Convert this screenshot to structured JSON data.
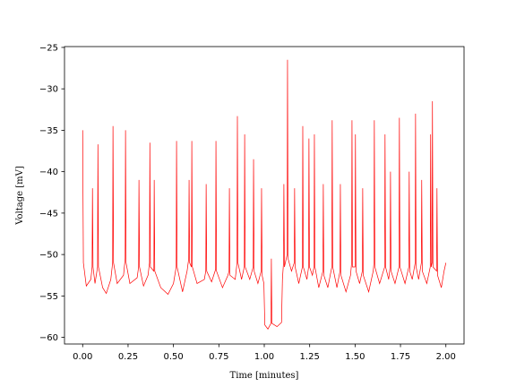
{
  "chart_data": {
    "type": "line",
    "xlabel": "Time [minutes]",
    "ylabel": "Voltage [mV]",
    "xlim": [
      -0.1,
      2.1
    ],
    "ylim": [
      -60.8,
      -24.9
    ],
    "xticks": [
      {
        "value": 0,
        "label": "0.00"
      },
      {
        "value": 0.25,
        "label": "0.25"
      },
      {
        "value": 0.5,
        "label": "0.50"
      },
      {
        "value": 0.75,
        "label": "0.75"
      },
      {
        "value": 1,
        "label": "1.00"
      },
      {
        "value": 1.25,
        "label": "1.25"
      },
      {
        "value": 1.5,
        "label": "1.50"
      },
      {
        "value": 1.75,
        "label": "1.75"
      },
      {
        "value": 2,
        "label": "2.00"
      }
    ],
    "yticks": [
      {
        "value": -25,
        "label": "−25"
      },
      {
        "value": -30,
        "label": "−30"
      },
      {
        "value": -35,
        "label": "−35"
      },
      {
        "value": -40,
        "label": "−40"
      },
      {
        "value": -45,
        "label": "−45"
      },
      {
        "value": -50,
        "label": "−50"
      },
      {
        "value": -55,
        "label": "−55"
      },
      {
        "value": -60,
        "label": "−60"
      }
    ],
    "grid": false,
    "x": [
      0.0,
      0.004,
      0.02,
      0.045,
      0.052,
      0.054,
      0.057,
      0.068,
      0.082,
      0.084,
      0.087,
      0.11,
      0.13,
      0.155,
      0.165,
      0.167,
      0.17,
      0.19,
      0.225,
      0.234,
      0.236,
      0.239,
      0.26,
      0.3,
      0.308,
      0.31,
      0.313,
      0.335,
      0.36,
      0.368,
      0.37,
      0.373,
      0.392,
      0.394,
      0.397,
      0.43,
      0.47,
      0.5,
      0.515,
      0.517,
      0.52,
      0.55,
      0.575,
      0.584,
      0.586,
      0.589,
      0.599,
      0.601,
      0.604,
      0.63,
      0.67,
      0.678,
      0.68,
      0.683,
      0.71,
      0.732,
      0.734,
      0.737,
      0.77,
      0.8,
      0.806,
      0.808,
      0.811,
      0.84,
      0.85,
      0.852,
      0.855,
      0.875,
      0.89,
      0.892,
      0.895,
      0.92,
      0.939,
      0.941,
      0.944,
      0.965,
      0.983,
      0.985,
      0.988,
      0.998,
      1.003,
      1.02,
      1.037,
      1.039,
      1.042,
      1.07,
      1.095,
      1.1,
      1.106,
      1.108,
      1.111,
      1.126,
      1.128,
      1.131,
      1.15,
      1.165,
      1.167,
      1.17,
      1.19,
      1.21,
      1.212,
      1.215,
      1.235,
      1.244,
      1.246,
      1.249,
      1.265,
      1.274,
      1.276,
      1.279,
      1.3,
      1.323,
      1.325,
      1.328,
      1.35,
      1.372,
      1.374,
      1.377,
      1.4,
      1.417,
      1.419,
      1.422,
      1.45,
      1.475,
      1.481,
      1.483,
      1.486,
      1.5,
      1.502,
      1.505,
      1.525,
      1.54,
      1.542,
      1.545,
      1.575,
      1.6,
      1.604,
      1.606,
      1.609,
      1.635,
      1.663,
      1.665,
      1.668,
      1.685,
      1.693,
      1.695,
      1.698,
      1.72,
      1.742,
      1.744,
      1.747,
      1.775,
      1.796,
      1.798,
      1.801,
      1.815,
      1.831,
      1.833,
      1.836,
      1.85,
      1.865,
      1.867,
      1.87,
      1.895,
      1.914,
      1.916,
      1.919,
      1.924,
      1.926,
      1.929,
      1.949,
      1.951,
      1.954,
      1.975,
      1.99,
      2.0
    ],
    "series": [
      {
        "name": "Voltage",
        "color": "#ff0000",
        "values": [
          -35.0,
          -51.0,
          -53.8,
          -53.0,
          -51.5,
          -42.0,
          -51.5,
          -53.5,
          -51.5,
          -36.7,
          -51.5,
          -54.0,
          -54.7,
          -53.0,
          -51.0,
          -34.5,
          -51.0,
          -53.5,
          -52.5,
          -50.5,
          -35.0,
          -51.0,
          -53.5,
          -52.8,
          -51.5,
          -41.0,
          -51.5,
          -53.8,
          -52.5,
          -51.0,
          -36.5,
          -51.5,
          -52.0,
          -41.0,
          -52.0,
          -54.0,
          -54.8,
          -53.5,
          -51.5,
          -36.3,
          -51.5,
          -54.5,
          -52.0,
          -50.5,
          -41.0,
          -51.0,
          -51.5,
          -36.3,
          -51.5,
          -53.5,
          -53.0,
          -52.0,
          -41.5,
          -52.0,
          -53.3,
          -51.8,
          -36.3,
          -52.0,
          -54.0,
          -52.5,
          -52.0,
          -42.0,
          -52.5,
          -53.0,
          -51.0,
          -33.3,
          -51.0,
          -53.0,
          -51.5,
          -35.5,
          -51.5,
          -53.0,
          -51.5,
          -38.5,
          -52.0,
          -53.5,
          -52.0,
          -42.0,
          -52.5,
          -53.5,
          -58.5,
          -59.0,
          -58.3,
          -50.5,
          -58.3,
          -58.7,
          -58.2,
          -53.0,
          -51.0,
          -41.5,
          -51.5,
          -50.0,
          -26.5,
          -50.5,
          -52.0,
          -51.0,
          -42.0,
          -51.5,
          -53.5,
          -51.5,
          -34.5,
          -51.5,
          -53.0,
          -51.5,
          -36.0,
          -51.5,
          -52.5,
          -51.5,
          -35.5,
          -51.5,
          -54.0,
          -52.0,
          -41.5,
          -52.5,
          -54.0,
          -51.5,
          -33.8,
          -51.5,
          -54.0,
          -52.0,
          -41.5,
          -52.5,
          -54.5,
          -52.5,
          -51.0,
          -33.8,
          -51.5,
          -51.5,
          -35.5,
          -52.0,
          -53.5,
          -52.0,
          -42.0,
          -52.5,
          -54.5,
          -52.0,
          -51.0,
          -33.8,
          -51.5,
          -53.5,
          -51.5,
          -35.5,
          -51.5,
          -53.0,
          -51.5,
          -40.0,
          -52.0,
          -53.5,
          -51.5,
          -33.5,
          -51.5,
          -53.5,
          -51.5,
          -40.0,
          -52.0,
          -53.0,
          -51.0,
          -33.0,
          -51.5,
          -53.0,
          -51.0,
          -41.0,
          -52.0,
          -53.5,
          -51.5,
          -35.5,
          -51.5,
          -51.0,
          -31.5,
          -51.5,
          -52.0,
          -42.0,
          -52.5,
          -54.0,
          -52.0,
          -51.0
        ]
      }
    ]
  }
}
